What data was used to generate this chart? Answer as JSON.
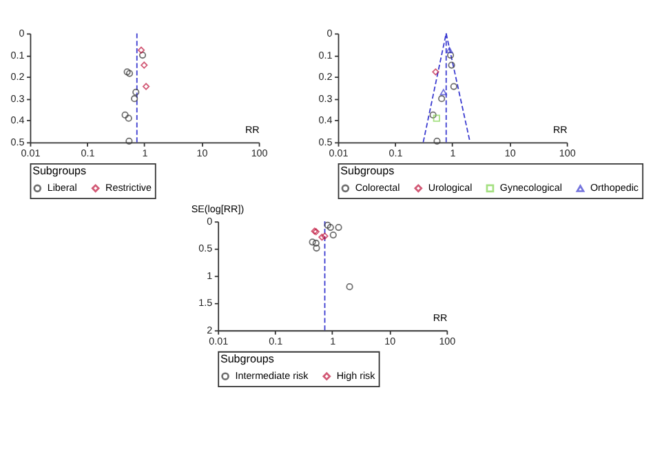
{
  "chart_data": [
    {
      "type": "scatter",
      "xlabel": "RR",
      "log": "x",
      "xlim": [
        0.01,
        100
      ],
      "xticks": [
        0.01,
        0.1,
        1,
        10,
        100
      ],
      "ylim": [
        0.5,
        0
      ],
      "yticks": [
        0,
        0.1,
        0.2,
        0.3,
        0.4,
        0.5
      ],
      "legend": "bottom",
      "legend_title": "Subgroups",
      "ref_lines": [
        {
          "axis": "x",
          "value": 0.74,
          "color": "#3a3ad0",
          "line_style": "dashed"
        }
      ],
      "series": [
        {
          "name": "Liberal",
          "color": "#333333",
          "marker": "circle",
          "x": [
            0.93,
            0.5,
            0.55,
            0.71,
            0.67,
            0.46,
            0.53,
            0.54
          ],
          "values": [
            0.1,
            0.177,
            0.184,
            0.27,
            0.3,
            0.375,
            0.39,
            0.495
          ]
        },
        {
          "name": "Restrictive",
          "color": "#c0143c",
          "marker": "diamond",
          "x": [
            0.88,
            0.99,
            1.07
          ],
          "values": [
            0.077,
            0.146,
            0.244
          ]
        }
      ]
    },
    {
      "type": "scatter",
      "xlabel": "RR",
      "log": "x",
      "xlim": [
        0.01,
        100
      ],
      "xticks": [
        0.01,
        0.1,
        1,
        10,
        100
      ],
      "ylim": [
        0.5,
        0
      ],
      "yticks": [
        0,
        0.1,
        0.2,
        0.3,
        0.4,
        0.5
      ],
      "legend": "bottom",
      "legend_title": "Subgroups",
      "ref_lines": [
        {
          "axis": "x",
          "value": 0.78,
          "color": "#3a3ad0",
          "line_style": "dashed"
        }
      ],
      "series": [
        {
          "name": "Colorectal",
          "color": "#333333",
          "marker": "circle",
          "x": [
            0.93,
            0.97,
            1.06,
            0.65,
            0.46,
            0.54
          ],
          "values": [
            0.1,
            0.146,
            0.244,
            0.3,
            0.375,
            0.495
          ]
        },
        {
          "name": "Urological",
          "color": "#c0143c",
          "marker": "diamond",
          "x": [
            0.51
          ],
          "values": [
            0.177
          ]
        },
        {
          "name": "Gynecological",
          "color": "#7fd34e",
          "marker": "square",
          "x": [
            0.53
          ],
          "values": [
            0.39
          ]
        },
        {
          "name": "Orthopedic",
          "color": "#3a3ad0",
          "marker": "triangle",
          "x": [
            0.89,
            0.7
          ],
          "values": [
            0.077,
            0.27
          ]
        },
        {
          "type": "line",
          "color": "#3a3ad0",
          "line_style": "dashed",
          "x": [
            0.31,
            0.78,
            2.04
          ],
          "values": [
            0.5,
            0,
            0.5
          ]
        }
      ]
    },
    {
      "type": "scatter",
      "xlabel": "RR",
      "ylabel": "SE(log[RR])",
      "log": "x",
      "xlim": [
        0.01,
        100
      ],
      "xticks": [
        0.01,
        0.1,
        1,
        10,
        100
      ],
      "ylim": [
        2,
        0
      ],
      "yticks": [
        0,
        0.5,
        1,
        1.5,
        2
      ],
      "legend": "bottom",
      "legend_title": "Subgroups",
      "ref_lines": [
        {
          "axis": "x",
          "value": 0.74,
          "color": "#3a3ad0",
          "line_style": "dashed"
        }
      ],
      "series": [
        {
          "name": "Intermediate risk",
          "color": "#333333",
          "marker": "circle",
          "x": [
            0.83,
            0.93,
            1.29,
            1.04,
            0.45,
            0.52,
            0.53,
            2.01
          ],
          "values": [
            0.07,
            0.11,
            0.11,
            0.25,
            0.38,
            0.4,
            0.49,
            1.2
          ]
        },
        {
          "name": "High risk",
          "color": "#c0143c",
          "marker": "diamond",
          "x": [
            0.49,
            0.52,
            0.74,
            0.66
          ],
          "values": [
            0.18,
            0.19,
            0.27,
            0.29
          ]
        }
      ]
    }
  ]
}
